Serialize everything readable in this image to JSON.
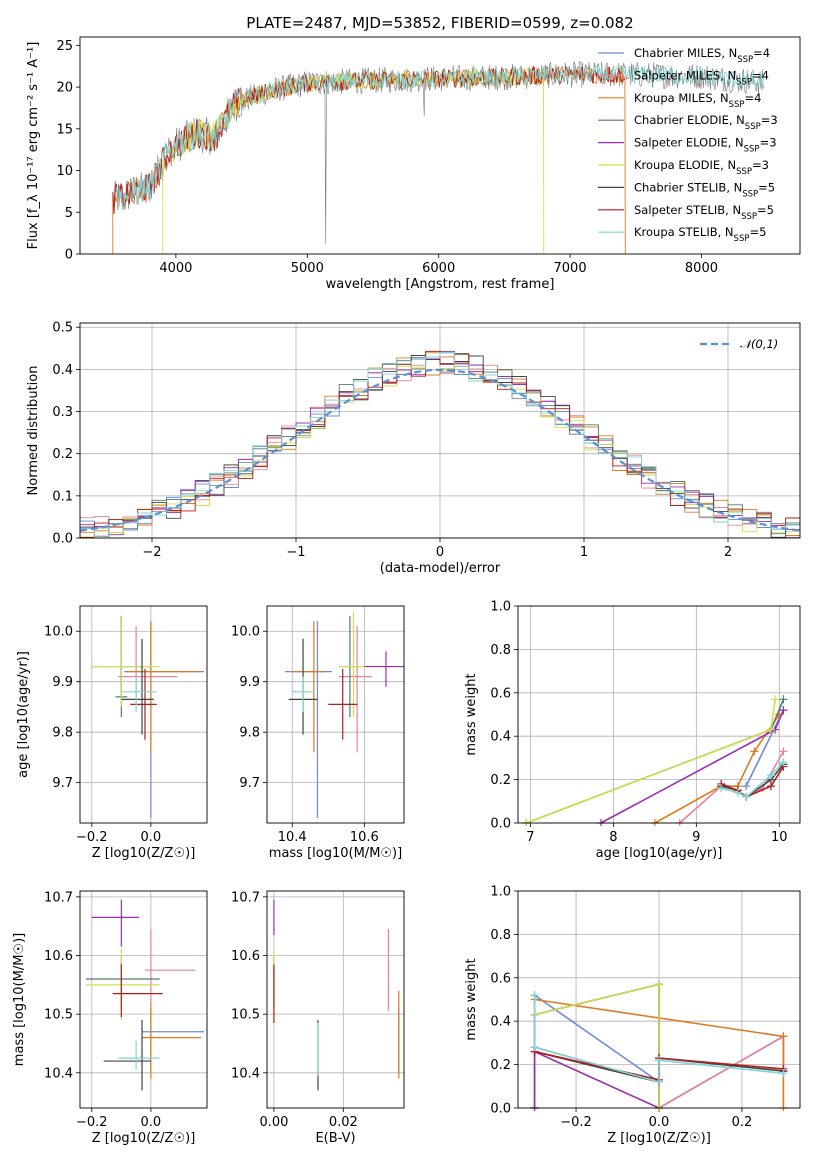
{
  "colors": {
    "Chabrier MILES": "#6b8bd6",
    "Salpeter MILES": "#e8839a",
    "Kroupa MILES": "#e07a1f",
    "Chabrier ELODIE": "#4f7f6b",
    "Salpeter ELODIE": "#9a2fb0",
    "Kroupa ELODIE": "#cfe04a",
    "Chabrier STELIB": "#444444",
    "Salpeter STELIB": "#b01e1e",
    "Kroupa STELIB": "#7fd6d6"
  },
  "chart_data": [
    {
      "id": "spectrum",
      "type": "line",
      "title": "PLATE=2487, MJD=53852, FIBERID=0599, z=0.082",
      "xlabel": "wavelength [Angstrom, rest frame]",
      "ylabel": "Flux [f_λ 10⁻¹⁷ erg cm⁻² s⁻¹ A⁻¹]",
      "xlim": [
        3270,
        8750
      ],
      "ylim": [
        0,
        26
      ],
      "xticks": [
        4000,
        5000,
        6000,
        7000,
        8000
      ],
      "yticks": [
        0,
        5,
        10,
        15,
        20,
        25
      ],
      "grid": false,
      "legend_position": "right",
      "legend": [
        "Chabrier MILES, N_SSP=4",
        "Salpeter MILES, N_SSP=4",
        "Kroupa MILES, N_SSP=4",
        "Chabrier ELODIE, N_SSP=3",
        "Salpeter ELODIE, N_SSP=3",
        "Kroupa ELODIE, N_SSP=3",
        "Chabrier STELIB, N_SSP=5",
        "Salpeter STELIB, N_SSP=5",
        "Kroupa STELIB, N_SSP=5"
      ],
      "data_shape": [
        [
          3520,
          6.5
        ],
        [
          3800,
          8
        ],
        [
          3950,
          12.5
        ],
        [
          4150,
          14.5
        ],
        [
          4300,
          14
        ],
        [
          4450,
          18
        ],
        [
          4700,
          19.5
        ],
        [
          5000,
          20.5
        ],
        [
          5500,
          20.8
        ],
        [
          6000,
          21
        ],
        [
          6500,
          21.2
        ],
        [
          7000,
          21.5
        ],
        [
          7400,
          21.5
        ],
        [
          8000,
          21.3
        ],
        [
          8500,
          20.5
        ]
      ]
    },
    {
      "id": "residuals",
      "type": "line",
      "xlabel": "(data-model)/error",
      "ylabel": "Normed distribution",
      "xlim": [
        -2.5,
        2.5
      ],
      "ylim": [
        0,
        0.51
      ],
      "xticks": [
        -2,
        -1,
        0,
        1,
        2
      ],
      "yticks": [
        0.0,
        0.1,
        0.2,
        0.3,
        0.4,
        0.5
      ],
      "grid": true,
      "legend_position": "top-right",
      "gauss_label": "𝒩(0,1)",
      "series": [
        {
          "name": "N(0,1)",
          "x_from": -2.5,
          "x_to": 2.5,
          "function": "gaussian",
          "mean": 0,
          "sigma": 1
        }
      ]
    },
    {
      "id": "age-vs-Z",
      "type": "scatter",
      "xlabel": "Z [log10(Z/Z☉)]",
      "ylabel": "age [log10(age/yr)]",
      "xlim": [
        -0.24,
        0.19
      ],
      "ylim": [
        9.62,
        10.05
      ],
      "xticks": [
        -0.2,
        0.0
      ],
      "yticks": [
        9.7,
        9.8,
        9.9,
        10.0
      ],
      "grid": true,
      "points": [
        {
          "m": "Chabrier MILES",
          "x": 0.0,
          "y": 9.92,
          "xe": [
            0.09,
            0.18
          ],
          "ye": [
            0.29,
            0.1
          ]
        },
        {
          "m": "Salpeter MILES",
          "x": -0.05,
          "y": 9.91,
          "xe": [
            0.06,
            0.14
          ],
          "ye": [
            0.05,
            0.1
          ]
        },
        {
          "m": "Kroupa MILES",
          "x": 0.0,
          "y": 9.92,
          "xe": [
            0.08,
            0.17
          ],
          "ye": [
            0.16,
            0.1
          ]
        },
        {
          "m": "Chabrier ELODIE",
          "x": -0.1,
          "y": 9.87,
          "xe": [
            0.02,
            0.02
          ],
          "ye": [
            0.04,
            0.16
          ]
        },
        {
          "m": "Salpeter ELODIE",
          "x": -0.1,
          "y": 9.93,
          "xe": [
            0.1,
            0.1
          ],
          "ye": [
            0.05,
            0.1
          ]
        },
        {
          "m": "Kroupa ELODIE",
          "x": -0.1,
          "y": 9.93,
          "xe": [
            0.1,
            0.13
          ],
          "ye": [
            0.08,
            0.1
          ]
        },
        {
          "m": "Chabrier STELIB",
          "x": -0.03,
          "y": 9.865,
          "xe": [
            0.07,
            0.04
          ],
          "ye": [
            0.07,
            0.12
          ]
        },
        {
          "m": "Salpeter STELIB",
          "x": -0.02,
          "y": 9.855,
          "xe": [
            0.05,
            0.04
          ],
          "ye": [
            0.07,
            0.07
          ]
        },
        {
          "m": "Kroupa STELIB",
          "x": -0.05,
          "y": 9.88,
          "xe": [
            0.05,
            0.07
          ],
          "ye": [
            0.04,
            0.03
          ]
        }
      ]
    },
    {
      "id": "age-vs-mass",
      "type": "scatter",
      "xlabel": "mass [log10(M/M☉)]",
      "xlim": [
        10.33,
        10.71
      ],
      "ylim": [
        9.62,
        10.05
      ],
      "xticks": [
        10.4,
        10.6
      ],
      "yticks": [
        9.7,
        9.8,
        9.9,
        10.0
      ],
      "grid": true,
      "points": [
        {
          "m": "Chabrier MILES",
          "x": 10.47,
          "y": 9.92,
          "xe": [
            0.09,
            0.04
          ],
          "ye": [
            0.29,
            0.1
          ]
        },
        {
          "m": "Salpeter MILES",
          "x": 10.58,
          "y": 9.91,
          "xe": [
            0.05,
            0.04
          ],
          "ye": [
            0.15,
            0.1
          ]
        },
        {
          "m": "Kroupa MILES",
          "x": 10.46,
          "y": 9.92,
          "xe": [
            0.06,
            0.03
          ],
          "ye": [
            0.16,
            0.1
          ]
        },
        {
          "m": "Chabrier ELODIE",
          "x": 10.56,
          "y": 9.93,
          "xe": [
            0.03,
            0.03
          ],
          "ye": [
            0.1,
            0.1
          ]
        },
        {
          "m": "Salpeter ELODIE",
          "x": 10.66,
          "y": 9.93,
          "xe": [
            0.06,
            0.05
          ],
          "ye": [
            0.04,
            0.03
          ]
        },
        {
          "m": "Kroupa ELODIE",
          "x": 10.57,
          "y": 9.93,
          "xe": [
            0.04,
            0.03
          ],
          "ye": [
            0.1,
            0.11
          ]
        },
        {
          "m": "Chabrier STELIB",
          "x": 10.43,
          "y": 9.865,
          "xe": [
            0.04,
            0.04
          ],
          "ye": [
            0.07,
            0.12
          ]
        },
        {
          "m": "Salpeter STELIB",
          "x": 10.54,
          "y": 9.855,
          "xe": [
            0.04,
            0.04
          ],
          "ye": [
            0.07,
            0.07
          ]
        },
        {
          "m": "Kroupa STELIB",
          "x": 10.43,
          "y": 9.88,
          "xe": [
            0.03,
            0.03
          ],
          "ye": [
            0.04,
            0.03
          ]
        }
      ]
    },
    {
      "id": "weight-vs-age",
      "type": "line",
      "xlabel": "age [log10(age/yr)]",
      "ylabel": "mass weight",
      "xlim": [
        6.85,
        10.25
      ],
      "ylim": [
        0,
        1
      ],
      "xticks": [
        7,
        8,
        9,
        10
      ],
      "yticks": [
        0.0,
        0.2,
        0.4,
        0.6,
        0.8,
        1.0
      ],
      "grid": true,
      "series": [
        {
          "name": "Chabrier MILES",
          "x": [
            9.6,
            10.05
          ],
          "y": [
            0.17,
            0.52
          ]
        },
        {
          "name": "Salpeter MILES",
          "x": [
            8.8,
            9.3,
            9.5,
            9.6,
            9.8,
            10.05
          ],
          "y": [
            0.0,
            0.17,
            0.15,
            0.12,
            0.16,
            0.33
          ]
        },
        {
          "name": "Kroupa MILES",
          "x": [
            8.5,
            9.3,
            9.5,
            9.7,
            10.0
          ],
          "y": [
            0.0,
            0.17,
            0.17,
            0.33,
            0.5
          ]
        },
        {
          "name": "Chabrier ELODIE",
          "x": [
            6.95,
            9.9,
            10.05
          ],
          "y": [
            0.0,
            0.43,
            0.57
          ]
        },
        {
          "name": "Salpeter ELODIE",
          "x": [
            7.85,
            9.95,
            10.05
          ],
          "y": [
            0.0,
            0.43,
            0.52
          ]
        },
        {
          "name": "Kroupa ELODIE",
          "x": [
            6.95,
            9.9,
            9.95
          ],
          "y": [
            0.0,
            0.43,
            0.57
          ]
        },
        {
          "name": "Chabrier STELIB",
          "x": [
            9.3,
            9.5,
            9.6,
            9.9,
            10.05
          ],
          "y": [
            0.17,
            0.15,
            0.12,
            0.2,
            0.27
          ]
        },
        {
          "name": "Salpeter STELIB",
          "x": [
            9.3,
            9.5,
            9.6,
            9.9,
            10.05
          ],
          "y": [
            0.18,
            0.15,
            0.12,
            0.17,
            0.26
          ]
        },
        {
          "name": "Kroupa STELIB",
          "x": [
            9.3,
            9.5,
            9.6,
            9.9,
            10.05
          ],
          "y": [
            0.16,
            0.14,
            0.12,
            0.22,
            0.28
          ]
        }
      ]
    },
    {
      "id": "mass-vs-Z",
      "type": "scatter",
      "xlabel": "Z [log10(Z/Z☉)]",
      "ylabel": "mass [log10(M/M☉)]",
      "xlim": [
        -0.24,
        0.19
      ],
      "ylim": [
        10.34,
        10.71
      ],
      "xticks": [
        -0.2,
        0.0
      ],
      "yticks": [
        10.4,
        10.5,
        10.6,
        10.7
      ],
      "grid": true,
      "points": [
        {
          "m": "Chabrier MILES",
          "x": 0.0,
          "y": 10.47,
          "xe": [
            0.03,
            0.18
          ],
          "ye": [
            0.07,
            0.04
          ]
        },
        {
          "m": "Salpeter MILES",
          "x": 0.0,
          "y": 10.575,
          "xe": [
            0.02,
            0.15
          ],
          "ye": [
            0.06,
            0.07
          ]
        },
        {
          "m": "Kroupa MILES",
          "x": 0.0,
          "y": 10.46,
          "xe": [
            0.03,
            0.17
          ],
          "ye": [
            0.07,
            0.06
          ]
        },
        {
          "m": "Chabrier ELODIE",
          "x": -0.1,
          "y": 10.56,
          "xe": [
            0.12,
            0.13
          ],
          "ye": [
            0.05,
            0.04
          ]
        },
        {
          "m": "Salpeter ELODIE",
          "x": -0.1,
          "y": 10.665,
          "xe": [
            0.1,
            0.06
          ],
          "ye": [
            0.05,
            0.03
          ]
        },
        {
          "m": "Kroupa ELODIE",
          "x": -0.1,
          "y": 10.55,
          "xe": [
            0.12,
            0.13
          ],
          "ye": [
            0.06,
            0.06
          ]
        },
        {
          "m": "Chabrier STELIB",
          "x": -0.03,
          "y": 10.42,
          "xe": [
            0.13,
            0.03
          ],
          "ye": [
            0.05,
            0.07
          ]
        },
        {
          "m": "Salpeter STELIB",
          "x": -0.1,
          "y": 10.535,
          "xe": [
            0.03,
            0.14
          ],
          "ye": [
            0.04,
            0.05
          ]
        },
        {
          "m": "Kroupa STELIB",
          "x": -0.05,
          "y": 10.425,
          "xe": [
            0.06,
            0.08
          ],
          "ye": [
            0.02,
            0.03
          ]
        }
      ]
    },
    {
      "id": "mass-vs-EBV",
      "type": "scatter",
      "xlabel": "E(B-V)",
      "xlim": [
        -0.002,
        0.0375
      ],
      "ylim": [
        10.34,
        10.71
      ],
      "xticks": [
        0.0,
        0.02
      ],
      "yticks": [
        10.4,
        10.5,
        10.6,
        10.7
      ],
      "grid": true,
      "points": [
        {
          "m": "Chabrier MILES",
          "x": 0.036,
          "y": 10.47,
          "xe": [
            0,
            0
          ],
          "ye": [
            0.07,
            0.04
          ]
        },
        {
          "m": "Salpeter MILES",
          "x": 0.033,
          "y": 10.575,
          "xe": [
            0,
            0
          ],
          "ye": [
            0.07,
            0.07
          ]
        },
        {
          "m": "Kroupa MILES",
          "x": 0.036,
          "y": 10.46,
          "xe": [
            0,
            0
          ],
          "ye": [
            0.07,
            0.08
          ]
        },
        {
          "m": "Chabrier ELODIE",
          "x": 0.0,
          "y": 10.56,
          "xe": [
            0,
            0
          ],
          "ye": [
            0.05,
            0.04
          ]
        },
        {
          "m": "Salpeter ELODIE",
          "x": 0.0,
          "y": 10.665,
          "xe": [
            0,
            0
          ],
          "ye": [
            0.03,
            0.03
          ]
        },
        {
          "m": "Kroupa ELODIE",
          "x": 0.0,
          "y": 10.55,
          "xe": [
            0,
            0
          ],
          "ye": [
            0.07,
            0.06
          ]
        },
        {
          "m": "Chabrier STELIB",
          "x": 0.0127,
          "y": 10.42,
          "xe": [
            0,
            0
          ],
          "ye": [
            0.05,
            0.07
          ]
        },
        {
          "m": "Salpeter STELIB",
          "x": 0.0,
          "y": 10.535,
          "xe": [
            0,
            0
          ],
          "ye": [
            0.05,
            0.05
          ]
        },
        {
          "m": "Kroupa STELIB",
          "x": 0.0127,
          "y": 10.425,
          "xe": [
            0,
            0
          ],
          "ye": [
            0.03,
            0.06
          ]
        }
      ]
    },
    {
      "id": "weight-vs-Z",
      "type": "line",
      "xlabel": "Z [log10(Z/Z☉)]",
      "ylabel": "mass weight",
      "xlim": [
        -0.34,
        0.34
      ],
      "ylim": [
        0,
        1
      ],
      "xticks": [
        -0.2,
        0.0,
        0.2
      ],
      "yticks": [
        0.0,
        0.2,
        0.4,
        0.6,
        0.8,
        1.0
      ],
      "grid": true,
      "series": [
        {
          "name": "Chabrier MILES",
          "x": [
            -0.3,
            -0.3,
            0.0,
            0.0,
            0.3,
            0.3
          ],
          "y": [
            0.0,
            0.52,
            0.12,
            0.0,
            0.33,
            0.17
          ]
        },
        {
          "name": "Salpeter MILES",
          "x": [
            -0.3,
            -0.3,
            0.0,
            0.0,
            0.3,
            0.3
          ],
          "y": [
            0.0,
            0.28,
            0.12,
            0.0,
            0.33,
            0.17
          ]
        },
        {
          "name": "Kroupa MILES",
          "x": [
            -0.3,
            0.3,
            0.3
          ],
          "y": [
            0.5,
            0.33,
            0.0
          ]
        },
        {
          "name": "Chabrier ELODIE",
          "x": [
            -0.3,
            0.0,
            0.0
          ],
          "y": [
            0.43,
            0.57,
            0.0
          ]
        },
        {
          "name": "Salpeter ELODIE",
          "x": [
            -0.3,
            -0.3,
            0.0,
            0.0,
            -0.3
          ],
          "y": [
            0.0,
            0.43,
            0.57,
            0.0,
            0.26
          ]
        },
        {
          "name": "Kroupa ELODIE",
          "x": [
            -0.3,
            0.0,
            0.0
          ],
          "y": [
            0.43,
            0.57,
            0.0
          ]
        },
        {
          "name": "Chabrier STELIB",
          "x": [
            -0.3,
            0.0,
            0.0,
            0.3
          ],
          "y": [
            0.26,
            0.12,
            0.23,
            0.17
          ]
        },
        {
          "name": "Salpeter STELIB",
          "x": [
            -0.3,
            0.0,
            0.0,
            0.3
          ],
          "y": [
            0.26,
            0.13,
            0.23,
            0.18
          ]
        },
        {
          "name": "Kroupa STELIB",
          "x": [
            -0.3,
            -0.3,
            0.0,
            0.0,
            0.3
          ],
          "y": [
            0.52,
            0.28,
            0.12,
            0.22,
            0.16
          ]
        }
      ]
    }
  ]
}
